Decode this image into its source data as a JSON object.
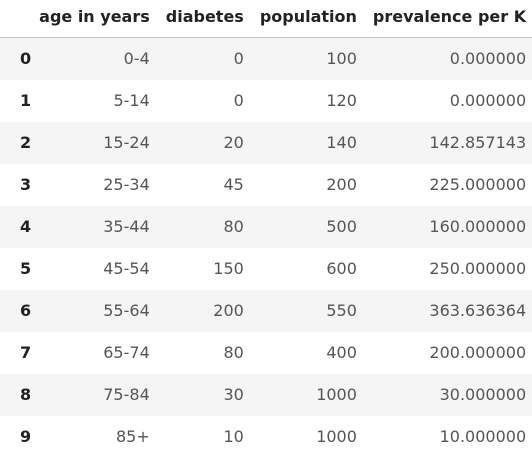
{
  "table": {
    "columns": [
      "age in years",
      "diabetes",
      "population",
      "prevalence per K"
    ],
    "rows": [
      {
        "index": "0",
        "age": "0-4",
        "diabetes": "0",
        "population": "100",
        "prevalence": "0.000000"
      },
      {
        "index": "1",
        "age": "5-14",
        "diabetes": "0",
        "population": "120",
        "prevalence": "0.000000"
      },
      {
        "index": "2",
        "age": "15-24",
        "diabetes": "20",
        "population": "140",
        "prevalence": "142.857143"
      },
      {
        "index": "3",
        "age": "25-34",
        "diabetes": "45",
        "population": "200",
        "prevalence": "225.000000"
      },
      {
        "index": "4",
        "age": "35-44",
        "diabetes": "80",
        "population": "500",
        "prevalence": "160.000000"
      },
      {
        "index": "5",
        "age": "45-54",
        "diabetes": "150",
        "population": "600",
        "prevalence": "250.000000"
      },
      {
        "index": "6",
        "age": "55-64",
        "diabetes": "200",
        "population": "550",
        "prevalence": "363.636364"
      },
      {
        "index": "7",
        "age": "65-74",
        "diabetes": "80",
        "population": "400",
        "prevalence": "200.000000"
      },
      {
        "index": "8",
        "age": "75-84",
        "diabetes": "30",
        "population": "1000",
        "prevalence": "30.000000"
      },
      {
        "index": "9",
        "age": "85+",
        "diabetes": "10",
        "population": "1000",
        "prevalence": "10.000000"
      }
    ]
  }
}
